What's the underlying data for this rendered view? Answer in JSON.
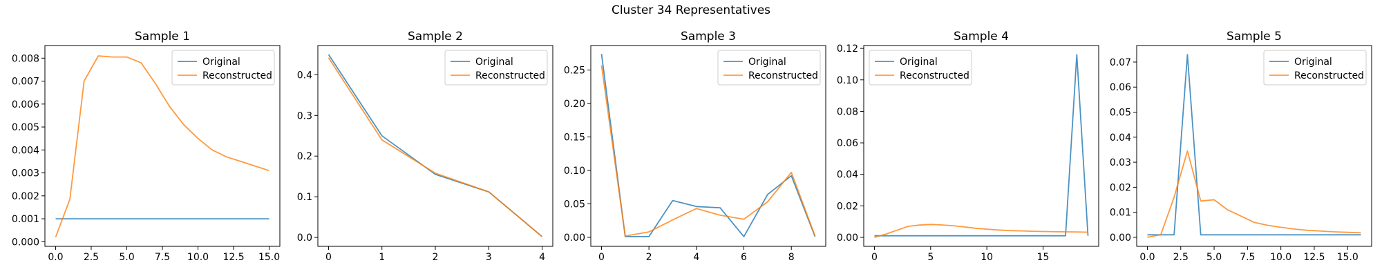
{
  "figure": {
    "title": "Cluster 34 Representatives"
  },
  "colors": {
    "original": "#1f77b4",
    "reconstructed": "#ff7f0e"
  },
  "chart_data": [
    {
      "type": "line",
      "title": "Sample 1",
      "legend_position": "upper-right",
      "xlim": [
        -0.75,
        15.75
      ],
      "ylim": [
        -0.0002,
        0.00855
      ],
      "xticks": [
        0,
        2.5,
        5,
        7.5,
        10,
        12.5,
        15
      ],
      "xtick_labels": [
        "0.0",
        "2.5",
        "5.0",
        "7.5",
        "10.0",
        "12.5",
        "15.0"
      ],
      "yticks": [
        0,
        0.001,
        0.002,
        0.003,
        0.004,
        0.005,
        0.006,
        0.007,
        0.008
      ],
      "ytick_labels": [
        "0.000",
        "0.001",
        "0.002",
        "0.003",
        "0.004",
        "0.005",
        "0.006",
        "0.007",
        "0.008"
      ],
      "series": [
        {
          "name": "Original",
          "x": [
            0,
            15
          ],
          "y": [
            0.001,
            0.001
          ]
        },
        {
          "name": "Reconstructed",
          "x": [
            0,
            1,
            2,
            3,
            4,
            5,
            6,
            7,
            8,
            9,
            10,
            11,
            12,
            13,
            14,
            15
          ],
          "y": [
            0.0002,
            0.00185,
            0.007,
            0.0081,
            0.00805,
            0.00805,
            0.0078,
            0.0069,
            0.0059,
            0.0051,
            0.0045,
            0.004,
            0.0037,
            0.0035,
            0.0033,
            0.0031
          ]
        }
      ]
    },
    {
      "type": "line",
      "title": "Sample 2",
      "legend_position": "upper-right",
      "xlim": [
        -0.2,
        4.2
      ],
      "ylim": [
        -0.022,
        0.472
      ],
      "xticks": [
        0,
        1,
        2,
        3,
        4
      ],
      "xtick_labels": [
        "0",
        "1",
        "2",
        "3",
        "4"
      ],
      "yticks": [
        0,
        0.1,
        0.2,
        0.3,
        0.4
      ],
      "ytick_labels": [
        "0.0",
        "0.1",
        "0.2",
        "0.3",
        "0.4"
      ],
      "series": [
        {
          "name": "Original",
          "x": [
            0,
            1,
            2,
            3,
            4
          ],
          "y": [
            0.45,
            0.25,
            0.155,
            0.112,
            0.002
          ]
        },
        {
          "name": "Reconstructed",
          "x": [
            0,
            1,
            2,
            3,
            4
          ],
          "y": [
            0.442,
            0.24,
            0.158,
            0.112,
            0.002
          ]
        }
      ]
    },
    {
      "type": "line",
      "title": "Sample 3",
      "legend_position": "upper-right",
      "xlim": [
        -0.45,
        9.45
      ],
      "ylim": [
        -0.0135,
        0.2865
      ],
      "xticks": [
        0,
        2,
        4,
        6,
        8
      ],
      "xtick_labels": [
        "0",
        "2",
        "4",
        "6",
        "8"
      ],
      "yticks": [
        0,
        0.05,
        0.1,
        0.15,
        0.2,
        0.25
      ],
      "ytick_labels": [
        "0.00",
        "0.05",
        "0.10",
        "0.15",
        "0.20",
        "0.25"
      ],
      "series": [
        {
          "name": "Original",
          "x": [
            0,
            1,
            2,
            3,
            4,
            5,
            6,
            7,
            8,
            9
          ],
          "y": [
            0.274,
            0.001,
            0.001,
            0.055,
            0.046,
            0.044,
            0.001,
            0.064,
            0.092,
            0.001
          ]
        },
        {
          "name": "Reconstructed",
          "x": [
            0,
            1,
            2,
            3,
            4,
            5,
            6,
            7,
            8,
            9
          ],
          "y": [
            0.257,
            0.002,
            0.008,
            0.026,
            0.043,
            0.033,
            0.027,
            0.053,
            0.097,
            0.002
          ]
        }
      ]
    },
    {
      "type": "line",
      "title": "Sample 4",
      "legend_position": "upper-left",
      "xlim": [
        -0.95,
        19.95
      ],
      "ylim": [
        -0.0057,
        0.1218
      ],
      "xticks": [
        0,
        5,
        10,
        15
      ],
      "xtick_labels": [
        "0",
        "5",
        "10",
        "15"
      ],
      "yticks": [
        0,
        0.02,
        0.04,
        0.06,
        0.08,
        0.1,
        0.12
      ],
      "ytick_labels": [
        "0.00",
        "0.02",
        "0.04",
        "0.06",
        "0.08",
        "0.10",
        "0.12"
      ],
      "series": [
        {
          "name": "Original",
          "x": [
            0,
            1,
            2,
            3,
            4,
            5,
            6,
            7,
            8,
            9,
            10,
            11,
            12,
            13,
            14,
            15,
            16,
            17,
            18,
            19
          ],
          "y": [
            0.001,
            0.001,
            0.001,
            0.001,
            0.001,
            0.001,
            0.001,
            0.001,
            0.001,
            0.001,
            0.001,
            0.001,
            0.001,
            0.001,
            0.001,
            0.001,
            0.001,
            0.001,
            0.116,
            0.001
          ]
        },
        {
          "name": "Reconstructed",
          "x": [
            0,
            1,
            2,
            3,
            4,
            5,
            6,
            7,
            8,
            9,
            10,
            11,
            12,
            13,
            14,
            15,
            16,
            17,
            18,
            19
          ],
          "y": [
            0.0,
            0.002,
            0.0045,
            0.007,
            0.0078,
            0.0082,
            0.0079,
            0.0074,
            0.0066,
            0.0058,
            0.0052,
            0.0047,
            0.0043,
            0.0041,
            0.0039,
            0.0037,
            0.0036,
            0.0035,
            0.0034,
            0.0033
          ]
        }
      ]
    },
    {
      "type": "line",
      "title": "Sample 5",
      "legend_position": "upper-right",
      "xlim": [
        -0.8,
        16.8
      ],
      "ylim": [
        -0.0036,
        0.0766
      ],
      "xticks": [
        0,
        2.5,
        5,
        7.5,
        10,
        12.5,
        15
      ],
      "xtick_labels": [
        "0.0",
        "2.5",
        "5.0",
        "7.5",
        "10.0",
        "12.5",
        "15.0"
      ],
      "yticks": [
        0,
        0.01,
        0.02,
        0.03,
        0.04,
        0.05,
        0.06,
        0.07
      ],
      "ytick_labels": [
        "0.00",
        "0.01",
        "0.02",
        "0.03",
        "0.04",
        "0.05",
        "0.06",
        "0.07"
      ],
      "series": [
        {
          "name": "Original",
          "x": [
            0,
            1,
            2,
            3,
            4,
            5,
            6,
            7,
            8,
            9,
            10,
            11,
            12,
            13,
            14,
            15,
            16
          ],
          "y": [
            0.001,
            0.001,
            0.001,
            0.073,
            0.001,
            0.001,
            0.001,
            0.001,
            0.001,
            0.001,
            0.001,
            0.001,
            0.001,
            0.001,
            0.001,
            0.001,
            0.001
          ]
        },
        {
          "name": "Reconstructed",
          "x": [
            0,
            1,
            2,
            3,
            4,
            5,
            6,
            7,
            8,
            9,
            10,
            11,
            12,
            13,
            14,
            15,
            16
          ],
          "y": [
            0.0,
            0.001,
            0.016,
            0.0345,
            0.0145,
            0.015,
            0.011,
            0.0085,
            0.006,
            0.0048,
            0.004,
            0.0033,
            0.0028,
            0.0025,
            0.0022,
            0.002,
            0.0018
          ]
        }
      ]
    }
  ]
}
